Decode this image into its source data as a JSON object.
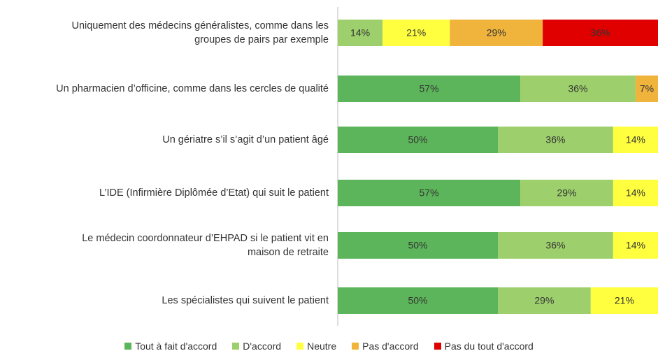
{
  "chart_data": {
    "type": "stacked-bar-horizontal",
    "categories": [
      "Uniquement des médecins généralistes, comme dans les\ngroupes de pairs par exemple",
      "Un pharmacien d’officine, comme dans les cercles de qualité",
      "Un gériatre s’il s’agit d’un patient âgé",
      "L’IDE (Infirmière Diplômée d’Etat) qui suit le patient",
      "Le médecin coordonnateur d’EHPAD si le patient vit en\nmaison de retraite",
      "Les spécialistes qui suivent le patient"
    ],
    "xlim": [
      0,
      100
    ],
    "series": [
      {
        "name": "Tout à fait d'accord",
        "color": "#5cb55a",
        "values": [
          0,
          57,
          50,
          57,
          50,
          50
        ],
        "value_labels": [
          null,
          "57%",
          "50%",
          "57%",
          "50%",
          "50%"
        ]
      },
      {
        "name": "D'accord",
        "color": "#9dd06c",
        "values": [
          14,
          36,
          36,
          29,
          36,
          29
        ],
        "value_labels": [
          "14%",
          "36%",
          "36%",
          "29%",
          "36%",
          "29%"
        ]
      },
      {
        "name": "Neutre",
        "color": "#ffff40",
        "values": [
          21,
          0,
          14,
          14,
          14,
          21
        ],
        "value_labels": [
          "21%",
          null,
          "14%",
          "14%",
          "14%",
          "21%"
        ]
      },
      {
        "name": "Pas d'accord",
        "color": "#f0b43c",
        "values": [
          29,
          7,
          0,
          0,
          0,
          0
        ],
        "value_labels": [
          "29%",
          "7%",
          null,
          null,
          null,
          null
        ]
      },
      {
        "name": "Pas du tout d'accord",
        "color": "#e00000",
        "values": [
          36,
          0,
          0,
          0,
          0,
          0
        ],
        "value_labels": [
          "36%",
          null,
          null,
          null,
          null,
          null
        ]
      }
    ],
    "legend": "bottom"
  }
}
